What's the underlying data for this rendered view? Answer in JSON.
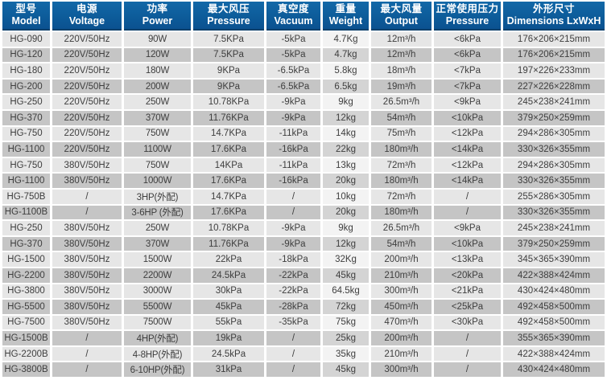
{
  "colors": {
    "header_bg_top": "#1268a8",
    "header_bg": "#0d5c9a",
    "header_bg_deep": "#0b5190",
    "header_border": "#0c3f6b",
    "header_text": "#ffffff",
    "row_light": "#e6e6e6",
    "row_dark": "#c5c5c5",
    "weight_light": "#f3f3f3",
    "weight_dark": "#d4d4d4",
    "cell_text": "#3e3e3e"
  },
  "chart_data": {
    "type": "table",
    "title": "Blower product specification table",
    "columns": [
      {
        "cn": "型号",
        "en": "Model"
      },
      {
        "cn": "电源",
        "en": "Voltage"
      },
      {
        "cn": "功率",
        "en": "Power"
      },
      {
        "cn": "最大风压",
        "en": "Pressure"
      },
      {
        "cn": "真空度",
        "en": "Vacuum"
      },
      {
        "cn": "重量",
        "en": "Weight"
      },
      {
        "cn": "最大风量",
        "en": "Output"
      },
      {
        "cn": "正常使用压力",
        "en": "Pressure"
      },
      {
        "cn": "外形尺寸",
        "en": "Dimensions LxWxH"
      }
    ],
    "rows": [
      [
        "HG-090",
        "220V/50Hz",
        "90W",
        "7.5KPa",
        "-5kPa",
        "4.7Kg",
        "12m³/h",
        "<6kPa",
        "176×206×215mm"
      ],
      [
        "HG-120",
        "220V/50Hz",
        "120W",
        "7.5KPa",
        "-5kPa",
        "4.7kg",
        "12m³/h",
        "<6kPa",
        "176×206×215mm"
      ],
      [
        "HG-180",
        "220V/50Hz",
        "180W",
        "9KPa",
        "-6.5kPa",
        "5.8kg",
        "18m³/h",
        "<7kPa",
        "197×226×233mm"
      ],
      [
        "HG-200",
        "220V/50Hz",
        "200W",
        "9KPa",
        "-6.5kPa",
        "6.5kg",
        "19m³/h",
        "<7kPa",
        "227×226×228mm"
      ],
      [
        "HG-250",
        "220V/50Hz",
        "250W",
        "10.78KPa",
        "-9kPa",
        "9kg",
        "26.5m³/h",
        "<9kPa",
        "245×238×241mm"
      ],
      [
        "HG-370",
        "220V/50Hz",
        "370W",
        "11.76KPa",
        "-9kPa",
        "12kg",
        "54m³/h",
        "<10kPa",
        "379×250×259mm"
      ],
      [
        "HG-750",
        "220V/50Hz",
        "750W",
        "14.7KPa",
        "-11kPa",
        "14kg",
        "75m³/h",
        "<12kPa",
        "294×286×305mm"
      ],
      [
        "HG-1100",
        "220V/50Hz",
        "1100W",
        "17.6KPa",
        "-16kPa",
        "22kg",
        "180m³/h",
        "<14kPa",
        "330×326×355mm"
      ],
      [
        "HG-750",
        "380V/50Hz",
        "750W",
        "14KPa",
        "-11kPa",
        "13kg",
        "72m³/h",
        "<12kPa",
        "294×286×305mm"
      ],
      [
        "HG-1100",
        "380V/50Hz",
        "1000W",
        "17.6KPa",
        "-16kPa",
        "20kg",
        "180m³/h",
        "<14kPa",
        "330×326×355mm"
      ],
      [
        "HG-750B",
        "/",
        "3HP(外配)",
        "14.7KPa",
        "/",
        "10kg",
        "72m³/h",
        "/",
        "255×286×305mm"
      ],
      [
        "HG-1100B",
        "/",
        "3-6HP (外配)",
        "17.6KPa",
        "/",
        "20kg",
        "180m³/h",
        "/",
        "330×326×355mm"
      ],
      [
        "HG-250",
        "380V/50Hz",
        "250W",
        "10.78KPa",
        "-9kPa",
        "9kg",
        "26.5m³/h",
        "<9kPa",
        "245×238×241mm"
      ],
      [
        "HG-370",
        "380V/50Hz",
        "370W",
        "11.76KPa",
        "-9kPa",
        "12kg",
        "54m³/h",
        "<10kPa",
        "379×250×259mm"
      ],
      [
        "HG-1500",
        "380V/50Hz",
        "1500W",
        "22kPa",
        "-18kPa",
        "32Kg",
        "200m³/h",
        "<13kPa",
        "345×365×390mm"
      ],
      [
        "HG-2200",
        "380V/50Hz",
        "2200W",
        "24.5kPa",
        "-22kPa",
        "45kg",
        "210m³/h",
        "<20kPa",
        "422×388×424mm"
      ],
      [
        "HG-3800",
        "380V/50Hz",
        "3000W",
        "30kPa",
        "-22kPa",
        "64.5kg",
        "300m³/h",
        "<21kPa",
        "430×424×480mm"
      ],
      [
        "HG-5500",
        "380V/50Hz",
        "5500W",
        "45kPa",
        "-28kPa",
        "72kg",
        "450m³/h",
        "<25kPa",
        "492×458×500mm"
      ],
      [
        "HG-7500",
        "380V/50Hz",
        "7500W",
        "55kPa",
        "-35kPa",
        "75kg",
        "470m³/h",
        "<30kPa",
        "492×458×500mm"
      ],
      [
        "HG-1500B",
        "/",
        "4HP(外配)",
        "19kPa",
        "/",
        "25kg",
        "200m³/h",
        "/",
        "355×365×390mm"
      ],
      [
        "HG-2200B",
        "/",
        "4-8HP(外配)",
        "24.5kPa",
        "/",
        "35kg",
        "210m³/h",
        "/",
        "422×388×424mm"
      ],
      [
        "HG-3800B",
        "/",
        "6-10HP(外配)",
        "31kPa",
        "/",
        "45kg",
        "300m³/h",
        "/",
        "430×424×480mm"
      ]
    ]
  }
}
